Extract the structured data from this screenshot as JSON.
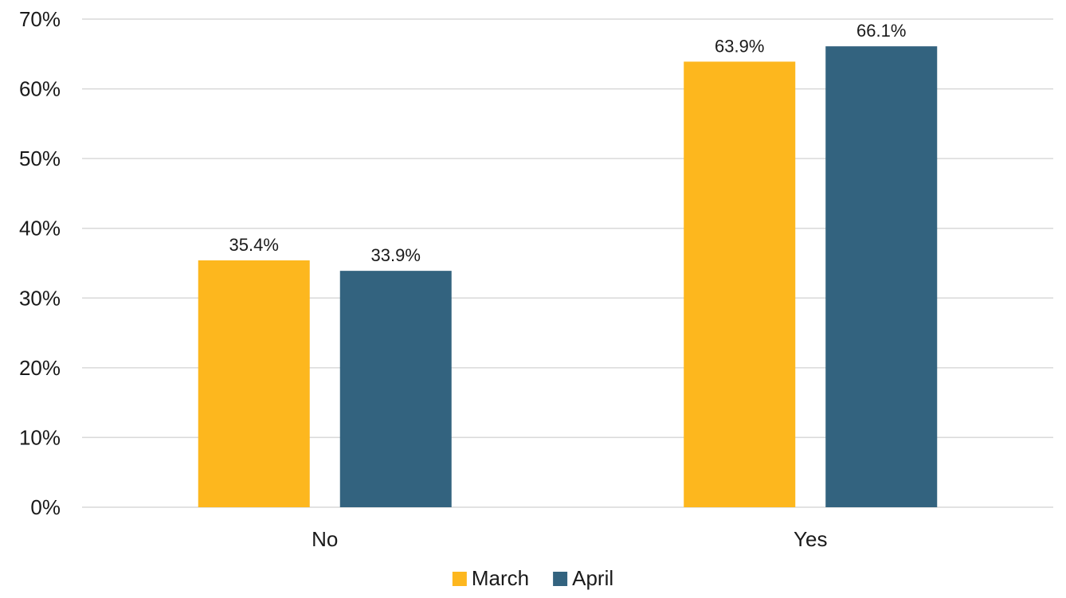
{
  "chart_data": {
    "type": "bar",
    "categories": [
      "No",
      "Yes"
    ],
    "series": [
      {
        "name": "March",
        "values": [
          35.4,
          63.9
        ],
        "color": "#FDB71E"
      },
      {
        "name": "April",
        "values": [
          33.9,
          66.1
        ],
        "color": "#33637F"
      }
    ],
    "data_labels": [
      [
        "35.4%",
        "63.9%"
      ],
      [
        "33.9%",
        "66.1%"
      ]
    ],
    "y_ticks": [
      0,
      10,
      20,
      30,
      40,
      50,
      60,
      70
    ],
    "y_tick_labels": [
      "0%",
      "10%",
      "20%",
      "30%",
      "40%",
      "50%",
      "60%",
      "70%"
    ],
    "ylim": [
      0,
      70
    ],
    "title": "",
    "xlabel": "",
    "ylabel": "",
    "grid": true,
    "legend_position": "bottom"
  }
}
